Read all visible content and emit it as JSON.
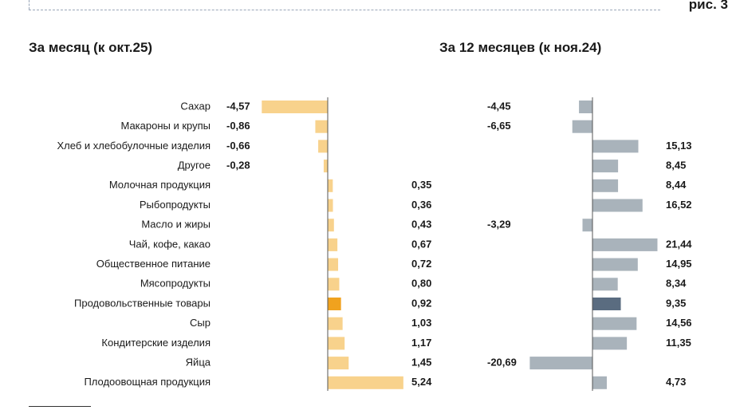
{
  "figure_label": "рис. 3",
  "left_panel": {
    "title": "За месяц (к окт.25)"
  },
  "right_panel": {
    "title": "За 12 месяцев (к ноя.24)"
  },
  "colors": {
    "month_bar": "#f8d28c",
    "month_highlight": "#f0a21e",
    "year_bar": "#a9b3bb",
    "year_highlight": "#5a6c80",
    "axis": "#555555"
  },
  "chart_data": [
    {
      "type": "bar",
      "orientation": "horizontal",
      "title": "За месяц (к окт.25)",
      "categories": [
        "Сахар",
        "Макароны и крупы",
        "Хлеб и хлебобулочные изделия",
        "Другое",
        "Молочная продукция",
        "Рыбопродукты",
        "Масло и жиры",
        "Чай, кофе, какао",
        "Общественное питание",
        "Мясопродукты",
        "Продовольственные товары",
        "Сыр",
        "Кондитерские изделия",
        "Яйца",
        "Плодоовощная продукция"
      ],
      "values": [
        -4.57,
        -0.86,
        -0.66,
        -0.28,
        0.35,
        0.36,
        0.43,
        0.67,
        0.72,
        0.8,
        0.92,
        1.03,
        1.17,
        1.45,
        5.24
      ],
      "labels": [
        "-4,57",
        "-0,86",
        "-0,66",
        "-0,28",
        "0,35",
        "0,36",
        "0,43",
        "0,67",
        "0,72",
        "0,80",
        "0,92",
        "1,03",
        "1,17",
        "1,45",
        "5,24"
      ],
      "highlight": "Продовольственные товары",
      "grid": false
    },
    {
      "type": "bar",
      "orientation": "horizontal",
      "title": "За 12 месяцев (к ноя.24)",
      "categories": [
        "Сахар",
        "Макароны и крупы",
        "Хлеб и хлебобулочные изделия",
        "Другое",
        "Молочная продукция",
        "Рыбопродукты",
        "Масло и жиры",
        "Чай, кофе, какао",
        "Общественное питание",
        "Мясопродукты",
        "Продовольственные товары",
        "Сыр",
        "Кондитерские изделия",
        "Яйца",
        "Плодоовощная продукция"
      ],
      "values": [
        -4.45,
        -6.65,
        15.13,
        8.45,
        8.44,
        16.52,
        -3.29,
        21.44,
        14.95,
        8.34,
        9.35,
        14.56,
        11.35,
        -20.69,
        4.73
      ],
      "labels": [
        "-4,45",
        "-6,65",
        "15,13",
        "8,45",
        "8,44",
        "16,52",
        "-3,29",
        "21,44",
        "14,95",
        "8,34",
        "9,35",
        "14,56",
        "11,35",
        "-20,69",
        "4,73"
      ],
      "highlight": "Продовольственные товары",
      "grid": false
    }
  ]
}
